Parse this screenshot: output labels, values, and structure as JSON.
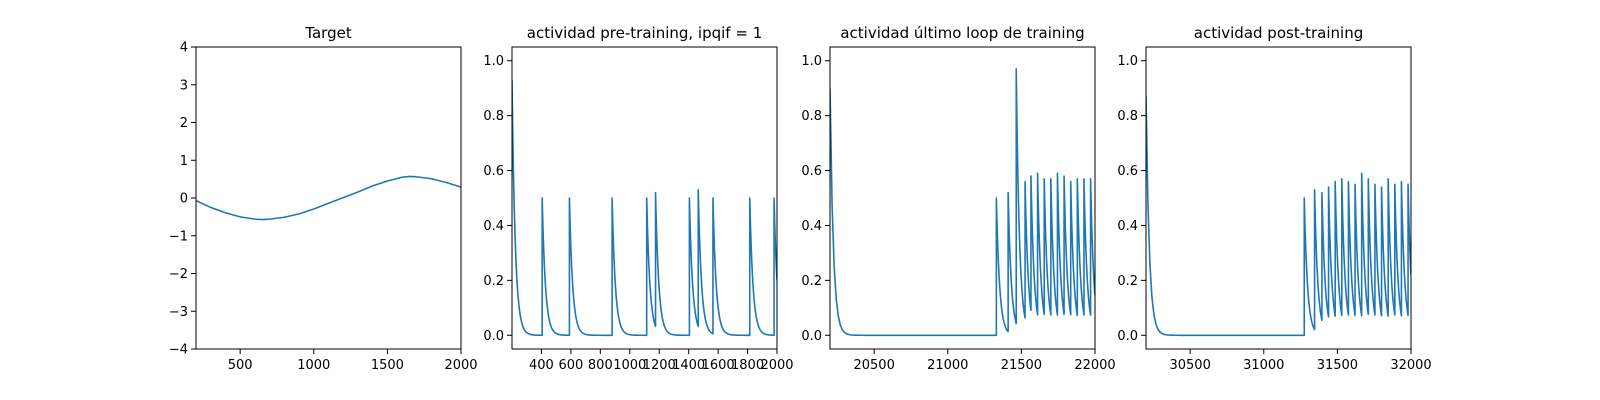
{
  "colors": {
    "series": "#1f77b4"
  },
  "chart_data": [
    {
      "type": "line",
      "title": "Target",
      "xlabel": "",
      "ylabel": "",
      "xlim": [
        200,
        2000
      ],
      "ylim": [
        -4,
        4
      ],
      "xticks": [
        500,
        1000,
        1500,
        2000
      ],
      "xtick_labels": [
        "500",
        "1000",
        "1500",
        "2000"
      ],
      "yticks": [
        -4,
        -3,
        -2,
        -1,
        0,
        1,
        2,
        3,
        4
      ],
      "ytick_labels": [
        "−4",
        "−3",
        "−2",
        "−1",
        "0",
        "1",
        "2",
        "3",
        "4"
      ],
      "grid": false,
      "series": [
        {
          "x": [
            200,
            300,
            400,
            500,
            600,
            650,
            700,
            800,
            900,
            1000,
            1100,
            1200,
            1300,
            1400,
            1500,
            1600,
            1650,
            1700,
            1800,
            1900,
            2000
          ],
          "y": [
            -0.07,
            -0.25,
            -0.39,
            -0.5,
            -0.56,
            -0.57,
            -0.56,
            -0.51,
            -0.42,
            -0.29,
            -0.14,
            0.01,
            0.16,
            0.32,
            0.45,
            0.55,
            0.57,
            0.56,
            0.51,
            0.41,
            0.29
          ]
        }
      ]
    },
    {
      "type": "line",
      "title": "actividad pre-training, ipqif = 1",
      "xlabel": "",
      "ylabel": "",
      "xlim": [
        200,
        2000
      ],
      "ylim": [
        -0.05,
        1.05
      ],
      "xticks": [
        400,
        600,
        800,
        1000,
        1200,
        1400,
        1600,
        1800,
        2000
      ],
      "xtick_labels": [
        "400",
        "600",
        "800",
        "1000",
        "1200",
        "1400",
        "1600",
        "1800",
        "2000"
      ],
      "yticks": [
        0.0,
        0.2,
        0.4,
        0.6,
        0.8,
        1.0
      ],
      "ytick_labels": [
        "0.0",
        "0.2",
        "0.4",
        "0.6",
        "0.8",
        "1.0"
      ],
      "grid": false,
      "decay_tau": 22,
      "start_value": 0.93,
      "end_x": 2000,
      "spikes": [
        {
          "x": 405,
          "peak": 0.5
        },
        {
          "x": 590,
          "peak": 0.5
        },
        {
          "x": 880,
          "peak": 0.5
        },
        {
          "x": 1115,
          "peak": 0.5
        },
        {
          "x": 1175,
          "peak": 0.52
        },
        {
          "x": 1405,
          "peak": 0.5
        },
        {
          "x": 1465,
          "peak": 0.53
        },
        {
          "x": 1565,
          "peak": 0.5
        },
        {
          "x": 1815,
          "peak": 0.5
        },
        {
          "x": 1980,
          "peak": 0.5
        }
      ]
    },
    {
      "type": "line",
      "title": "actividad último loop de training",
      "xlabel": "",
      "ylabel": "",
      "xlim": [
        20200,
        22000
      ],
      "ylim": [
        -0.05,
        1.05
      ],
      "xticks": [
        20500,
        21000,
        21500,
        22000
      ],
      "xtick_labels": [
        "20500",
        "21000",
        "21500",
        "22000"
      ],
      "yticks": [
        0.0,
        0.2,
        0.4,
        0.6,
        0.8,
        1.0
      ],
      "ytick_labels": [
        "0.0",
        "0.2",
        "0.4",
        "0.6",
        "0.8",
        "1.0"
      ],
      "grid": false,
      "decay_tau": 22,
      "start_value": 0.9,
      "end_x": 22000,
      "spikes": [
        {
          "x": 21330,
          "peak": 0.5
        },
        {
          "x": 21410,
          "peak": 0.52
        },
        {
          "x": 21465,
          "peak": 0.97
        },
        {
          "x": 21525,
          "peak": 0.56
        },
        {
          "x": 21565,
          "peak": 0.58
        },
        {
          "x": 21610,
          "peak": 0.59
        },
        {
          "x": 21655,
          "peak": 0.57
        },
        {
          "x": 21700,
          "peak": 0.57
        },
        {
          "x": 21745,
          "peak": 0.59
        },
        {
          "x": 21790,
          "peak": 0.58
        },
        {
          "x": 21835,
          "peak": 0.56
        },
        {
          "x": 21880,
          "peak": 0.57
        },
        {
          "x": 21925,
          "peak": 0.57
        },
        {
          "x": 21970,
          "peak": 0.57
        }
      ]
    },
    {
      "type": "line",
      "title": "actividad post-training",
      "xlabel": "",
      "ylabel": "",
      "xlim": [
        30200,
        32000
      ],
      "ylim": [
        -0.05,
        1.05
      ],
      "xticks": [
        30500,
        31000,
        31500,
        32000
      ],
      "xtick_labels": [
        "30500",
        "31000",
        "31500",
        "32000"
      ],
      "yticks": [
        0.0,
        0.2,
        0.4,
        0.6,
        0.8,
        1.0
      ],
      "ytick_labels": [
        "0.0",
        "0.2",
        "0.4",
        "0.6",
        "0.8",
        "1.0"
      ],
      "grid": false,
      "decay_tau": 22,
      "start_value": 0.87,
      "end_x": 32000,
      "spikes": [
        {
          "x": 31275,
          "peak": 0.5
        },
        {
          "x": 31345,
          "peak": 0.53
        },
        {
          "x": 31395,
          "peak": 0.52
        },
        {
          "x": 31440,
          "peak": 0.54
        },
        {
          "x": 31485,
          "peak": 0.56
        },
        {
          "x": 31530,
          "peak": 0.57
        },
        {
          "x": 31575,
          "peak": 0.56
        },
        {
          "x": 31620,
          "peak": 0.55
        },
        {
          "x": 31665,
          "peak": 0.59
        },
        {
          "x": 31710,
          "peak": 0.57
        },
        {
          "x": 31755,
          "peak": 0.55
        },
        {
          "x": 31800,
          "peak": 0.54
        },
        {
          "x": 31845,
          "peak": 0.57
        },
        {
          "x": 31890,
          "peak": 0.55
        },
        {
          "x": 31935,
          "peak": 0.56
        },
        {
          "x": 31980,
          "peak": 0.55
        }
      ]
    }
  ]
}
